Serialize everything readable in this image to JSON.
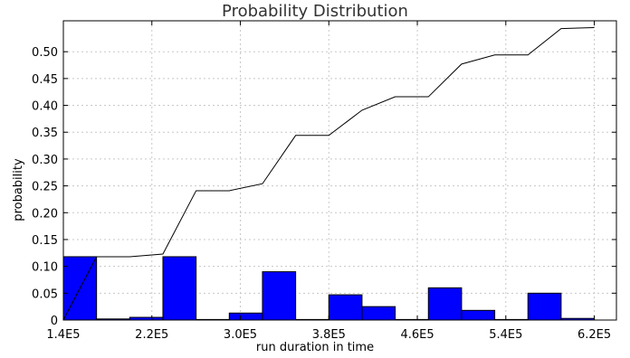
{
  "chart_data": {
    "type": "bar",
    "title": "Probability Distribution",
    "xlabel": "run duration in time",
    "ylabel": "probability",
    "xlim": [
      140000,
      640000
    ],
    "ylim": [
      0,
      0.5576
    ],
    "grid": true,
    "x_ticks": [
      140000,
      220000,
      300000,
      380000,
      460000,
      540000,
      620000
    ],
    "x_tick_labels": [
      "1.4E5",
      "2.2E5",
      "3.0E5",
      "3.8E5",
      "4.6E5",
      "5.4E5",
      "6.2E5"
    ],
    "y_ticks": [
      0,
      0.05,
      0.1,
      0.15,
      0.2,
      0.25,
      0.3,
      0.35,
      0.4,
      0.45,
      0.5
    ],
    "y_tick_labels": [
      "0",
      "0.05",
      "0.10",
      "0.15",
      "0.20",
      "0.25",
      "0.30",
      "0.35",
      "0.40",
      "0.45",
      "0.50"
    ],
    "bar_series": {
      "color": "#0000ff",
      "bin_edges": [
        140000,
        170000,
        200000,
        230000,
        260000,
        290000,
        320000,
        350000,
        380000,
        410000,
        440000,
        470000,
        500000,
        530000,
        560000,
        590000,
        620000
      ],
      "values": [
        0.118,
        0.002,
        0.005,
        0.118,
        0.001,
        0.013,
        0.09,
        0.001,
        0.047,
        0.025,
        0.001,
        0.06,
        0.018,
        0.001,
        0.05,
        0.003
      ]
    },
    "line_series": {
      "color": "#000000",
      "x": [
        140000,
        170000,
        200000,
        230000,
        260000,
        290000,
        320000,
        350000,
        380000,
        410000,
        440000,
        470000,
        500000,
        530000,
        560000,
        590000,
        620000
      ],
      "y": [
        0.0,
        0.118,
        0.118,
        0.123,
        0.241,
        0.241,
        0.254,
        0.344,
        0.344,
        0.391,
        0.416,
        0.416,
        0.477,
        0.494,
        0.494,
        0.543,
        0.545
      ]
    }
  }
}
